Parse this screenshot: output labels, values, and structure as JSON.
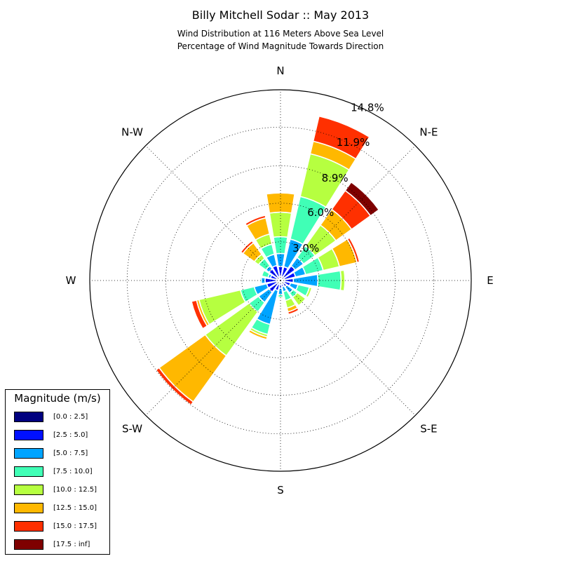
{
  "title": "Billy Mitchell Sodar :: May 2013",
  "subtitle_line1": "Wind Distribution at 116 Meters Above Sea Level",
  "subtitle_line2": "Percentage of Wind Magnitude Towards Direction",
  "chart_data": {
    "type": "windrose",
    "direction_labels": [
      "N",
      "N-E",
      "E",
      "S-E",
      "S",
      "S-W",
      "W",
      "N-W"
    ],
    "radial_tick_labels": [
      "3.0%",
      "6.0%",
      "8.9%",
      "11.9%",
      "14.8%"
    ],
    "radial_ticks": [
      3.0,
      6.0,
      8.9,
      11.9,
      14.8
    ],
    "rmax": 14.8,
    "grid": true,
    "legend_position": "bottom-left",
    "legend_title": "Magnitude (m/s)",
    "bins": [
      {
        "label": "[0.0 : 2.5]",
        "color": "#00007f"
      },
      {
        "label": "[2.5 : 5.0]",
        "color": "#0010ff"
      },
      {
        "label": "[5.0 : 7.5]",
        "color": "#00a4ff"
      },
      {
        "label": "[7.5 : 10.0]",
        "color": "#40ffb6"
      },
      {
        "label": "[10.0 : 12.5]",
        "color": "#b6ff40"
      },
      {
        "label": "[12.5 : 15.0]",
        "color": "#ffb800"
      },
      {
        "label": "[15.0 : 17.5]",
        "color": "#ff3000"
      },
      {
        "label": "[17.5 : inf]",
        "color": "#7f0000"
      }
    ],
    "sectors": [
      {
        "direction_deg": 0,
        "cumulative_percent": [
          0.3,
          1.1,
          2.1,
          3.4,
          5.3,
          6.8,
          6.8,
          6.8
        ]
      },
      {
        "direction_deg": 22.5,
        "cumulative_percent": [
          0.3,
          1.1,
          3.3,
          6.7,
          10.1,
          11.1,
          13.1,
          13.1
        ]
      },
      {
        "direction_deg": 45,
        "cumulative_percent": [
          0.3,
          1.4,
          2.2,
          3.3,
          5.3,
          6.8,
          8.6,
          9.4
        ]
      },
      {
        "direction_deg": 67.5,
        "cumulative_percent": [
          0.3,
          1.2,
          2.0,
          3.4,
          4.7,
          6.1,
          6.3,
          6.3
        ]
      },
      {
        "direction_deg": 90,
        "cumulative_percent": [
          0.3,
          1.0,
          2.9,
          4.7,
          5.0,
          5.0,
          5.0,
          5.0
        ]
      },
      {
        "direction_deg": 112.5,
        "cumulative_percent": [
          0.3,
          0.8,
          1.4,
          2.3,
          2.5,
          2.5,
          2.5,
          2.5
        ]
      },
      {
        "direction_deg": 135,
        "cumulative_percent": [
          0.3,
          0.6,
          1.2,
          1.6,
          2.4,
          2.4,
          2.4,
          2.4
        ]
      },
      {
        "direction_deg": 157.5,
        "cumulative_percent": [
          0.3,
          0.5,
          0.9,
          1.6,
          2.2,
          2.5,
          2.7,
          2.7
        ]
      },
      {
        "direction_deg": 180,
        "cumulative_percent": [
          0.3,
          0.6,
          1.1,
          1.3,
          1.4,
          1.4,
          1.4,
          1.4
        ]
      },
      {
        "direction_deg": 202.5,
        "cumulative_percent": [
          0.3,
          0.8,
          3.5,
          4.3,
          4.5,
          4.7,
          4.7,
          4.7
        ]
      },
      {
        "direction_deg": 225,
        "cumulative_percent": [
          0.3,
          1.1,
          2.1,
          3.0,
          7.2,
          11.6,
          11.9,
          11.9
        ]
      },
      {
        "direction_deg": 247.5,
        "cumulative_percent": [
          0.3,
          1.1,
          2.1,
          3.2,
          6.5,
          6.7,
          7.1,
          7.1
        ]
      },
      {
        "direction_deg": 270,
        "cumulative_percent": [
          0.3,
          1.2,
          1.5,
          1.6,
          1.6,
          1.6,
          1.6,
          1.6
        ]
      },
      {
        "direction_deg": 292.5,
        "cumulative_percent": [
          0.3,
          0.8,
          1.0,
          1.5,
          1.5,
          1.5,
          1.5,
          1.5
        ]
      },
      {
        "direction_deg": 315,
        "cumulative_percent": [
          0.3,
          1.1,
          1.4,
          2.1,
          2.5,
          3.6,
          3.8,
          3.8
        ]
      },
      {
        "direction_deg": 337.5,
        "cumulative_percent": [
          0.3,
          1.2,
          2.1,
          2.9,
          3.7,
          5.0,
          5.2,
          5.2
        ]
      }
    ]
  }
}
